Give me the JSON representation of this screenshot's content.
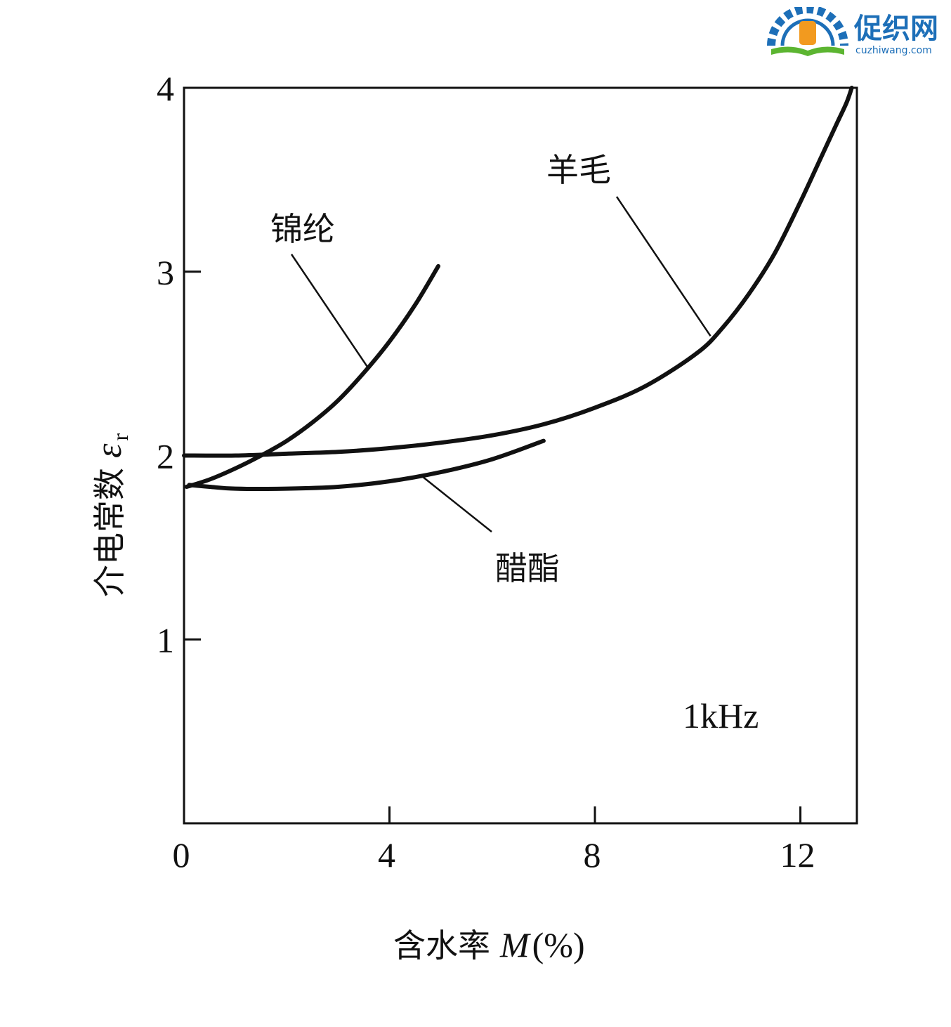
{
  "watermark": {
    "name_cn": "促织网",
    "domain": "cuzhiwang.com",
    "colors": {
      "blue": "#1d6fb8",
      "orange": "#f29a1f",
      "green": "#5cb531"
    }
  },
  "chart_data": {
    "type": "line",
    "title": "",
    "xlabel_cn": "含水率",
    "xlabel_var": "M",
    "xlabel_unit": "(%)",
    "ylabel_cn": "介电常数",
    "ylabel_var": "ε",
    "ylabel_sub": "r",
    "xlim": [
      0,
      13.1
    ],
    "ylim": [
      0,
      4
    ],
    "xticks": [
      0,
      4,
      8,
      12
    ],
    "yticks": [
      1,
      2,
      3,
      4
    ],
    "xtick_labels": [
      "0",
      "4",
      "8",
      "12"
    ],
    "ytick_labels": [
      "1",
      "2",
      "3",
      "4"
    ],
    "grid": false,
    "legend": "none",
    "annotation": "1kHz",
    "line_color": "#111111",
    "series": [
      {
        "name": "锦纶",
        "x": [
          0.05,
          0.5,
          1.0,
          1.5,
          2.0,
          2.5,
          3.0,
          3.5,
          4.0,
          4.5,
          4.95
        ],
        "y": [
          1.83,
          1.87,
          1.93,
          2.0,
          2.08,
          2.18,
          2.3,
          2.45,
          2.62,
          2.82,
          3.03
        ]
      },
      {
        "name": "羊毛",
        "x": [
          0,
          1,
          2,
          3,
          4,
          5,
          6,
          7,
          8,
          9,
          10,
          10.5,
          11,
          11.5,
          12,
          12.4,
          12.7,
          12.9,
          13.0
        ],
        "y": [
          2.0,
          2.0,
          2.01,
          2.02,
          2.04,
          2.07,
          2.11,
          2.17,
          2.26,
          2.38,
          2.56,
          2.7,
          2.88,
          3.1,
          3.38,
          3.62,
          3.8,
          3.92,
          4.0
        ]
      },
      {
        "name": "醋酯",
        "x": [
          0.1,
          0.5,
          1,
          2,
          3,
          4,
          5,
          6,
          7
        ],
        "y": [
          1.84,
          1.83,
          1.82,
          1.82,
          1.83,
          1.86,
          1.91,
          1.98,
          2.08
        ]
      }
    ],
    "callouts": [
      {
        "series": "锦纶",
        "label": "锦纶"
      },
      {
        "series": "羊毛",
        "label": "羊毛"
      },
      {
        "series": "醋酯",
        "label": "醋酯"
      }
    ]
  }
}
